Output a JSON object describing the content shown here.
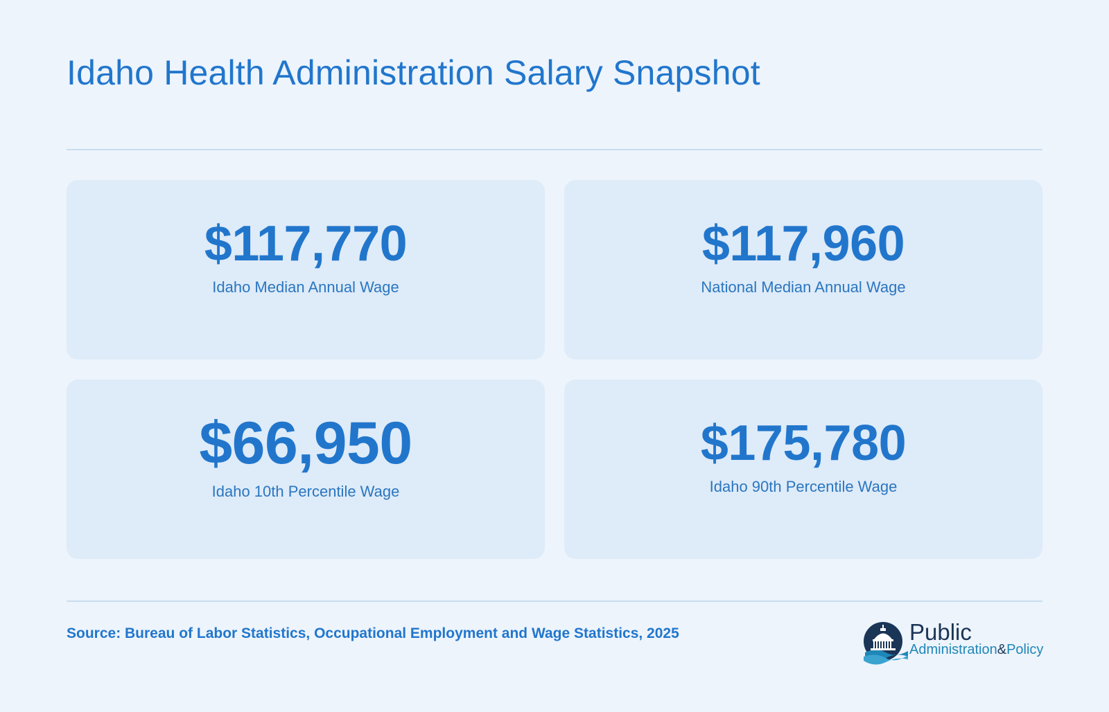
{
  "title": "Idaho Health Administration Salary Snapshot",
  "stats": [
    {
      "value": "$117,770",
      "label": "Idaho Median Annual Wage"
    },
    {
      "value": "$117,960",
      "label": "National Median Annual Wage"
    },
    {
      "value": "$66,950",
      "label": "Idaho 10th Percentile Wage"
    },
    {
      "value": "$175,780",
      "label": "Idaho 90th Percentile Wage"
    }
  ],
  "source": "Source: Bureau of Labor Statistics, Occupational Employment and Wage Statistics, 2025",
  "logo": {
    "line1": "Public",
    "line2_part1": "Administration",
    "line2_amp": "&",
    "line2_part2": "Policy",
    "icon": "capitol-dome-icon"
  },
  "colors": {
    "background": "#edf4fc",
    "card": "#deebf8",
    "accent": "#2176cc",
    "rule": "#c9ddee",
    "logo_dark": "#1b3557",
    "logo_teal": "#1f86b8"
  }
}
